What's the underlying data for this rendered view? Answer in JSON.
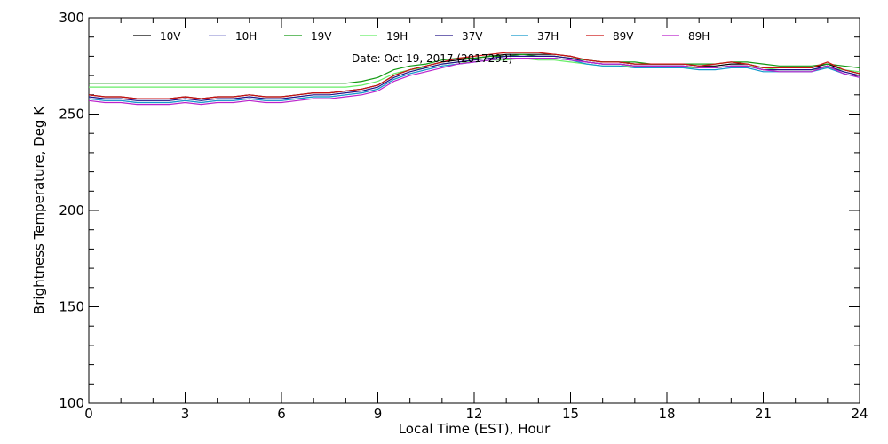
{
  "chart_data": {
    "type": "line",
    "title": "",
    "xlabel": "Local Time (EST), Hour",
    "ylabel": "Brightness Temperature, Deg K",
    "xlim": [
      0,
      24
    ],
    "ylim": [
      100,
      300
    ],
    "xticks": [
      0,
      3,
      6,
      9,
      12,
      15,
      18,
      21,
      24
    ],
    "yticks": [
      100,
      150,
      200,
      250,
      300
    ],
    "grid": false,
    "legend_position": "top",
    "annotation": "Date: Oct 19, 2017 (2017292)",
    "x": [
      0,
      0.5,
      1,
      1.5,
      2,
      2.5,
      3,
      3.5,
      4,
      4.5,
      5,
      5.5,
      6,
      6.5,
      7,
      7.5,
      8,
      8.5,
      9,
      9.5,
      10,
      10.5,
      11,
      11.5,
      12,
      12.5,
      13,
      13.5,
      14,
      14.5,
      15,
      15.5,
      16,
      16.5,
      17,
      17.5,
      18,
      18.5,
      19,
      19.5,
      20,
      20.5,
      21,
      21.5,
      22,
      22.5,
      23,
      23.5,
      24
    ],
    "series": [
      {
        "name": "10V",
        "color": "#000000",
        "values": [
          260,
          259,
          259,
          258,
          258,
          258,
          259,
          258,
          259,
          259,
          260,
          259,
          259,
          260,
          261,
          261,
          262,
          263,
          265,
          270,
          273,
          275,
          277,
          278,
          279,
          280,
          281,
          281,
          281,
          281,
          280,
          278,
          277,
          277,
          276,
          276,
          276,
          276,
          275,
          275,
          276,
          276,
          274,
          274,
          274,
          274,
          276,
          273,
          271
        ]
      },
      {
        "name": "10H",
        "color": "#9a9ad8",
        "values": [
          258,
          257,
          257,
          256,
          256,
          256,
          257,
          256,
          257,
          257,
          258,
          257,
          257,
          258,
          259,
          259,
          260,
          261,
          263,
          268,
          271,
          273,
          275,
          276,
          277,
          278,
          279,
          279,
          279,
          279,
          278,
          277,
          276,
          276,
          275,
          275,
          275,
          275,
          274,
          274,
          275,
          275,
          273,
          273,
          273,
          273,
          275,
          272,
          270
        ]
      },
      {
        "name": "19V",
        "color": "#119911",
        "values": [
          266,
          266,
          266,
          266,
          266,
          266,
          266,
          266,
          266,
          266,
          266,
          266,
          266,
          266,
          266,
          266,
          266,
          267,
          269,
          273,
          275,
          276,
          278,
          279,
          279,
          280,
          280,
          281,
          280,
          280,
          279,
          278,
          277,
          277,
          277,
          276,
          276,
          276,
          276,
          276,
          277,
          277,
          276,
          275,
          275,
          275,
          276,
          275,
          274
        ]
      },
      {
        "name": "19H",
        "color": "#66ee66",
        "values": [
          264,
          264,
          264,
          264,
          264,
          264,
          264,
          264,
          264,
          264,
          264,
          264,
          264,
          264,
          264,
          264,
          264,
          265,
          267,
          271,
          273,
          274,
          276,
          277,
          277,
          278,
          278,
          279,
          278,
          278,
          277,
          276,
          275,
          275,
          275,
          274,
          274,
          274,
          274,
          274,
          275,
          275,
          274,
          273,
          273,
          273,
          274,
          273,
          272
        ]
      },
      {
        "name": "37V",
        "color": "#221188",
        "values": [
          259,
          258,
          258,
          257,
          257,
          257,
          258,
          257,
          258,
          258,
          259,
          258,
          258,
          259,
          260,
          260,
          261,
          262,
          264,
          269,
          272,
          274,
          276,
          277,
          278,
          279,
          280,
          280,
          280,
          280,
          279,
          277,
          276,
          276,
          275,
          275,
          275,
          275,
          274,
          274,
          275,
          275,
          273,
          273,
          273,
          273,
          275,
          272,
          270
        ]
      },
      {
        "name": "37H",
        "color": "#1199cc",
        "values": [
          258,
          257,
          257,
          256,
          256,
          256,
          257,
          256,
          257,
          257,
          258,
          257,
          257,
          258,
          259,
          259,
          260,
          261,
          263,
          268,
          271,
          273,
          275,
          276,
          277,
          278,
          279,
          279,
          279,
          279,
          278,
          276,
          275,
          275,
          274,
          274,
          274,
          274,
          273,
          273,
          274,
          274,
          272,
          272,
          272,
          272,
          274,
          271,
          269
        ]
      },
      {
        "name": "89V",
        "color": "#cc1111",
        "values": [
          260,
          259,
          259,
          258,
          258,
          258,
          259,
          258,
          259,
          259,
          260,
          259,
          259,
          260,
          261,
          261,
          262,
          263,
          265,
          270,
          273,
          275,
          277,
          279,
          280,
          281,
          282,
          282,
          282,
          281,
          280,
          278,
          277,
          277,
          276,
          276,
          276,
          276,
          275,
          276,
          277,
          276,
          274,
          274,
          274,
          274,
          277,
          273,
          271
        ]
      },
      {
        "name": "89H",
        "color": "#bb22cc",
        "values": [
          257,
          256,
          256,
          255,
          255,
          255,
          256,
          255,
          256,
          256,
          257,
          256,
          256,
          257,
          258,
          258,
          259,
          260,
          262,
          267,
          270,
          272,
          274,
          276,
          277,
          278,
          279,
          279,
          279,
          279,
          278,
          277,
          276,
          276,
          275,
          275,
          275,
          275,
          274,
          274,
          275,
          275,
          273,
          272,
          272,
          272,
          275,
          271,
          269
        ]
      }
    ]
  }
}
